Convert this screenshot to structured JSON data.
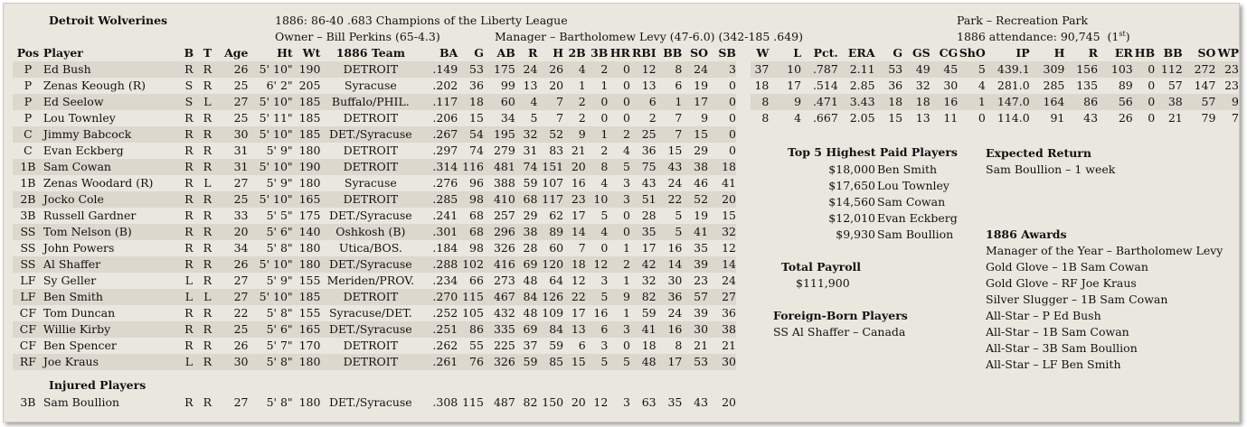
{
  "header": {
    "team": "Detroit Wolverines",
    "season": "1886:  86-40  .683  Champions of the Liberty League",
    "owner": "Owner – Bill Perkins (65-4.3)",
    "manager": "Manager – Bartholomew Levy (47-6.0)  (342-185  .649)",
    "park": "Park – Recreation Park",
    "attendance": "1886 attendance:  90,745",
    "attendance_rank": "(1",
    "attendance_rank_sup": "st",
    "attendance_rank_end": ")"
  },
  "roster_headers": [
    "Pos",
    "Player",
    "B",
    "T",
    "Age",
    "Ht",
    "Wt",
    "1886 Team",
    "BA",
    "G",
    "AB",
    "R",
    "H",
    "2B",
    "3B",
    "HR",
    "RBI",
    "BB",
    "SO",
    "SB"
  ],
  "roster": [
    [
      "P",
      "Ed Bush",
      "R",
      "R",
      "26",
      "5' 10\"",
      "190",
      "DETROIT",
      ".149",
      "53",
      "175",
      "24",
      "26",
      "4",
      "2",
      "0",
      "12",
      "8",
      "24",
      "3"
    ],
    [
      "P",
      "Zenas Keough (R)",
      "S",
      "R",
      "25",
      "6' 2\"",
      "205",
      "Syracuse",
      ".202",
      "36",
      "99",
      "13",
      "20",
      "1",
      "1",
      "0",
      "13",
      "6",
      "19",
      "0"
    ],
    [
      "P",
      "Ed Seelow",
      "S",
      "L",
      "27",
      "5' 10\"",
      "185",
      "Buffalo/PHIL.",
      ".117",
      "18",
      "60",
      "4",
      "7",
      "2",
      "0",
      "0",
      "6",
      "1",
      "17",
      "0"
    ],
    [
      "P",
      "Lou Townley",
      "R",
      "R",
      "25",
      "5' 11\"",
      "185",
      "DETROIT",
      ".206",
      "15",
      "34",
      "5",
      "7",
      "2",
      "0",
      "0",
      "2",
      "7",
      "9",
      "0"
    ],
    [
      "C",
      "Jimmy Babcock",
      "R",
      "R",
      "30",
      "5' 10\"",
      "185",
      "DET./Syracuse",
      ".267",
      "54",
      "195",
      "32",
      "52",
      "9",
      "1",
      "2",
      "25",
      "7",
      "15",
      "0"
    ],
    [
      "C",
      "Evan Eckberg",
      "R",
      "R",
      "31",
      "5' 9\"",
      "180",
      "DETROIT",
      ".297",
      "74",
      "279",
      "31",
      "83",
      "21",
      "2",
      "4",
      "36",
      "15",
      "29",
      "0"
    ],
    [
      "1B",
      "Sam Cowan",
      "R",
      "R",
      "31",
      "5' 10\"",
      "190",
      "DETROIT",
      ".314",
      "116",
      "481",
      "74",
      "151",
      "20",
      "8",
      "5",
      "75",
      "43",
      "38",
      "18"
    ],
    [
      "1B",
      "Zenas Woodard (R)",
      "R",
      "L",
      "27",
      "5' 9\"",
      "180",
      "Syracuse",
      ".276",
      "96",
      "388",
      "59",
      "107",
      "16",
      "4",
      "3",
      "43",
      "24",
      "46",
      "41"
    ],
    [
      "2B",
      "Jocko Cole",
      "R",
      "R",
      "25",
      "5' 10\"",
      "165",
      "DETROIT",
      ".285",
      "98",
      "410",
      "68",
      "117",
      "23",
      "10",
      "3",
      "51",
      "22",
      "52",
      "20"
    ],
    [
      "3B",
      "Russell Gardner",
      "R",
      "R",
      "33",
      "5' 5\"",
      "175",
      "DET./Syracuse",
      ".241",
      "68",
      "257",
      "29",
      "62",
      "17",
      "5",
      "0",
      "28",
      "5",
      "19",
      "15"
    ],
    [
      "SS",
      "Tom Nelson (B)",
      "R",
      "R",
      "20",
      "5' 6\"",
      "140",
      "Oshkosh (B)",
      ".301",
      "68",
      "296",
      "38",
      "89",
      "14",
      "4",
      "0",
      "35",
      "5",
      "41",
      "32"
    ],
    [
      "SS",
      "John Powers",
      "R",
      "R",
      "34",
      "5' 8\"",
      "180",
      "Utica/BOS.",
      ".184",
      "98",
      "326",
      "28",
      "60",
      "7",
      "0",
      "1",
      "17",
      "16",
      "35",
      "12"
    ],
    [
      "SS",
      "Al Shaffer",
      "R",
      "R",
      "26",
      "5' 10\"",
      "180",
      "DET./Syracuse",
      ".288",
      "102",
      "416",
      "69",
      "120",
      "18",
      "12",
      "2",
      "42",
      "14",
      "39",
      "14"
    ],
    [
      "LF",
      "Sy Geller",
      "L",
      "R",
      "27",
      "5' 9\"",
      "155",
      "Meriden/PROV.",
      ".234",
      "66",
      "273",
      "48",
      "64",
      "12",
      "3",
      "1",
      "32",
      "30",
      "23",
      "24"
    ],
    [
      "LF",
      "Ben Smith",
      "L",
      "L",
      "27",
      "5' 10\"",
      "185",
      "DETROIT",
      ".270",
      "115",
      "467",
      "84",
      "126",
      "22",
      "5",
      "9",
      "82",
      "36",
      "57",
      "27"
    ],
    [
      "CF",
      "Tom Duncan",
      "R",
      "R",
      "22",
      "5' 8\"",
      "155",
      "Syracuse/DET.",
      ".252",
      "105",
      "432",
      "48",
      "109",
      "17",
      "16",
      "1",
      "59",
      "24",
      "39",
      "36"
    ],
    [
      "CF",
      "Willie Kirby",
      "R",
      "R",
      "25",
      "5' 6\"",
      "165",
      "DET./Syracuse",
      ".251",
      "86",
      "335",
      "69",
      "84",
      "13",
      "6",
      "3",
      "41",
      "16",
      "30",
      "38"
    ],
    [
      "CF",
      "Ben Spencer",
      "R",
      "R",
      "26",
      "5' 7\"",
      "170",
      "DETROIT",
      ".262",
      "55",
      "225",
      "37",
      "59",
      "6",
      "3",
      "0",
      "18",
      "8",
      "21",
      "21"
    ],
    [
      "RF",
      "Joe Kraus",
      "L",
      "R",
      "30",
      "5' 8\"",
      "180",
      "DETROIT",
      ".261",
      "76",
      "326",
      "59",
      "85",
      "15",
      "5",
      "5",
      "48",
      "17",
      "53",
      "30"
    ]
  ],
  "injured": {
    "title": "Injured Players",
    "rows": [
      [
        "3B",
        "Sam Boullion",
        "R",
        "R",
        "27",
        "5' 8\"",
        "180",
        "DET./Syracuse",
        ".308",
        "115",
        "487",
        "82",
        "150",
        "20",
        "12",
        "3",
        "63",
        "35",
        "43",
        "20"
      ]
    ]
  },
  "pitching_headers": [
    "W",
    "L",
    "Pct.",
    "ERA",
    "G",
    "GS",
    "CG",
    "ShO",
    "IP",
    "H",
    "R",
    "ER",
    "HB",
    "BB",
    "SO",
    "WP"
  ],
  "pitching": [
    [
      "37",
      "10",
      ".787",
      "2.11",
      "53",
      "49",
      "45",
      "5",
      "439.1",
      "309",
      "156",
      "103",
      "0",
      "112",
      "272",
      "23"
    ],
    [
      "18",
      "17",
      ".514",
      "2.85",
      "36",
      "32",
      "30",
      "4",
      "281.0",
      "285",
      "135",
      "89",
      "0",
      "57",
      "147",
      "23"
    ],
    [
      "8",
      "9",
      ".471",
      "3.43",
      "18",
      "18",
      "16",
      "1",
      "147.0",
      "164",
      "86",
      "56",
      "0",
      "38",
      "57",
      "9"
    ],
    [
      "8",
      "4",
      ".667",
      "2.05",
      "15",
      "13",
      "11",
      "0",
      "114.0",
      "91",
      "43",
      "26",
      "0",
      "21",
      "79",
      "7"
    ]
  ],
  "top_paid": {
    "title": "Top 5 Highest Paid Players",
    "items": [
      {
        "amount": "$18,000",
        "name": "Ben Smith"
      },
      {
        "amount": "$17,650",
        "name": "Lou Townley"
      },
      {
        "amount": "$14,560",
        "name": "Sam Cowan"
      },
      {
        "amount": "$12,010",
        "name": "Evan Eckberg"
      },
      {
        "amount": "$9,930",
        "name": "Sam Boullion"
      }
    ]
  },
  "payroll": {
    "title": "Total Payroll",
    "value": "$111,900"
  },
  "foreign": {
    "title": "Foreign-Born Players",
    "items": [
      "SS  Al Shaffer – Canada"
    ]
  },
  "expected_return": {
    "title": "Expected Return",
    "items": [
      "Sam Boullion – 1 week"
    ]
  },
  "awards": {
    "title": "1886 Awards",
    "items": [
      "Manager of the Year – Bartholomew Levy",
      "Gold Glove – 1B  Sam Cowan",
      "Gold Glove – RF  Joe Kraus",
      "Silver Slugger – 1B  Sam Cowan",
      "All-Star – P  Ed Bush",
      "All-Star – 1B  Sam Cowan",
      "All-Star – 3B  Sam Boullion",
      "All-Star – LF  Ben Smith"
    ]
  }
}
